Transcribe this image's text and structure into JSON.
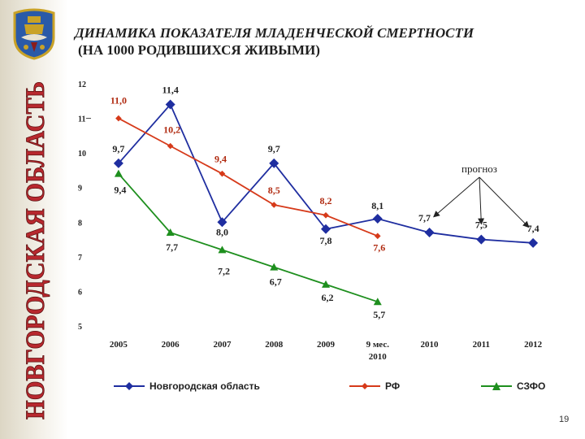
{
  "title_line1": "ДИНАМИКА ПОКАЗАТЕЛЯ МЛАДЕНЧЕСКОЙ СМЕРТНОСТИ",
  "title_line2": "(НА 1000 РОДИВШИХСЯ ЖИВЫМИ)",
  "region_banner": "НОВГОРОДСКАЯ ОБЛАСТЬ",
  "page_number": "19",
  "colors": {
    "novgorod": "#1f2ea0",
    "rf": "#d63a1a",
    "szfo": "#1e8f1e",
    "banner": "#b8282e"
  },
  "chart_data": {
    "type": "line",
    "categories": [
      "2005",
      "2006",
      "2007",
      "2008",
      "2009",
      "9 мес.\n2010",
      "2010",
      "2011",
      "2012"
    ],
    "ylim": [
      5,
      12
    ],
    "yticks": [
      "5",
      "6",
      "7",
      "8",
      "9",
      "10",
      "11",
      "12"
    ],
    "grid": false,
    "legend_position": "bottom",
    "annotation": "прогноз",
    "series": [
      {
        "name": "Новгородская область",
        "color": "#1f2ea0",
        "marker": "diamond",
        "values": [
          9.7,
          11.4,
          8.0,
          9.7,
          7.8,
          8.1,
          7.7,
          7.5,
          7.4
        ],
        "labels": [
          "9,7",
          "11,4",
          "8,0",
          "9,7",
          "7,8",
          "8,1",
          "7,7",
          "7,5",
          "7,4"
        ]
      },
      {
        "name": "РФ",
        "color": "#d63a1a",
        "marker": "diamond-small",
        "values": [
          11.0,
          10.2,
          9.4,
          8.5,
          8.2,
          7.6,
          null,
          null,
          null
        ],
        "labels": [
          "11,0",
          "10,2",
          "9,4",
          "8,5",
          "8,2",
          "7,6",
          null,
          null,
          null
        ]
      },
      {
        "name": "СЗФО",
        "color": "#1e8f1e",
        "marker": "triangle",
        "values": [
          9.4,
          7.7,
          7.2,
          6.7,
          6.2,
          5.7,
          null,
          null,
          null
        ],
        "labels": [
          "9,4",
          "7,7",
          "7,2",
          "6,7",
          "6,2",
          "5,7",
          null,
          null,
          null
        ]
      }
    ]
  }
}
